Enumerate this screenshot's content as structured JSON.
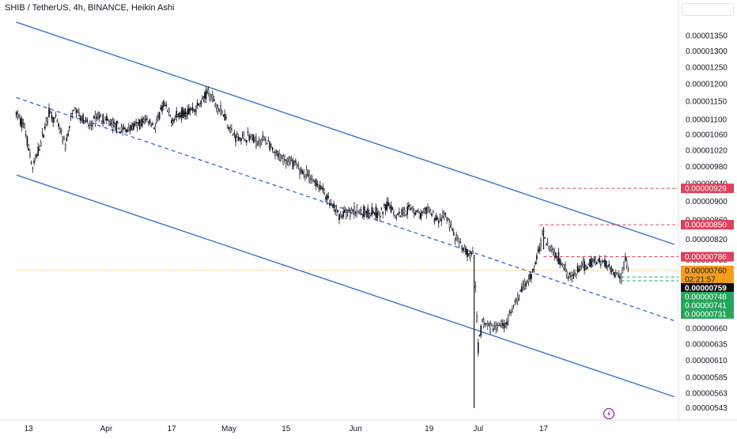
{
  "header": {
    "title": "SHIB / TetherUS, 4h, BINANCE, Heikin Ashi"
  },
  "colors": {
    "channel": "#3a6fd8",
    "up": "#131722",
    "down": "#131722",
    "resistance": "#e0405a",
    "support": "#26a65b",
    "current": "#f59f1a",
    "last": "#0d0d0d",
    "grid": "#f0f3fa",
    "axis_text": "#131722"
  },
  "chart_data": {
    "type": "candlestick",
    "symbol": "SHIB / TetherUS",
    "interval": "4h",
    "exchange": "BINANCE",
    "style": "Heikin Ashi",
    "ylim": [
      5.35e-06,
      1.4e-05
    ],
    "y_scale": "log",
    "y_ticks": [
      "0.00001350",
      "0.00001300",
      "0.00001250",
      "0.00001200",
      "0.00001150",
      "0.00001100",
      "0.00001060",
      "0.00001020",
      "0.00000980",
      "0.00000940",
      "0.00000900",
      "0.00000860",
      "0.00000820",
      "0.00000780",
      "0.00000660",
      "0.00000635",
      "0.00000610",
      "0.00000585",
      "0.00000563",
      "0.00000543"
    ],
    "x_ticks": [
      "13",
      "Apr",
      "17",
      "May",
      "15",
      "Jun",
      "19",
      "Jul",
      "17"
    ],
    "path": [
      {
        "date": "2021-03-10",
        "price": 1.115e-05
      },
      {
        "date": "2021-03-12",
        "price": 1.08e-05
      },
      {
        "date": "2021-03-14",
        "price": 9.75e-06
      },
      {
        "date": "2021-03-16",
        "price": 1.04e-05
      },
      {
        "date": "2021-03-18",
        "price": 1.12e-05
      },
      {
        "date": "2021-03-20",
        "price": 1.09e-05
      },
      {
        "date": "2021-03-22",
        "price": 1.03e-05
      },
      {
        "date": "2021-03-24",
        "price": 1.13e-05
      },
      {
        "date": "2021-03-26",
        "price": 1.105e-05
      },
      {
        "date": "2021-03-28",
        "price": 1.08e-05
      },
      {
        "date": "2021-03-30",
        "price": 1.11e-05
      },
      {
        "date": "2021-04-02",
        "price": 1.09e-05
      },
      {
        "date": "2021-04-05",
        "price": 1.07e-05
      },
      {
        "date": "2021-04-08",
        "price": 1.08e-05
      },
      {
        "date": "2021-04-11",
        "price": 1.1e-05
      },
      {
        "date": "2021-04-13",
        "price": 1.08e-05
      },
      {
        "date": "2021-04-15",
        "price": 1.14e-05
      },
      {
        "date": "2021-04-17",
        "price": 1.1e-05
      },
      {
        "date": "2021-04-20",
        "price": 1.12e-05
      },
      {
        "date": "2021-04-23",
        "price": 1.13e-05
      },
      {
        "date": "2021-04-26",
        "price": 1.175e-05
      },
      {
        "date": "2021-04-28",
        "price": 1.14e-05
      },
      {
        "date": "2021-04-30",
        "price": 1.11e-05
      },
      {
        "date": "2021-05-02",
        "price": 1.06e-05
      },
      {
        "date": "2021-05-04",
        "price": 1.05e-05
      },
      {
        "date": "2021-05-06",
        "price": 1.055e-05
      },
      {
        "date": "2021-05-08",
        "price": 1.04e-05
      },
      {
        "date": "2021-05-10",
        "price": 1.05e-05
      },
      {
        "date": "2021-05-12",
        "price": 1.01e-05
      },
      {
        "date": "2021-05-14",
        "price": 1e-05
      },
      {
        "date": "2021-05-16",
        "price": 9.95e-06
      },
      {
        "date": "2021-05-18",
        "price": 9.75e-06
      },
      {
        "date": "2021-05-20",
        "price": 9.6e-06
      },
      {
        "date": "2021-05-22",
        "price": 9.45e-06
      },
      {
        "date": "2021-05-24",
        "price": 9.25e-06
      },
      {
        "date": "2021-05-26",
        "price": 8.9e-06
      },
      {
        "date": "2021-05-28",
        "price": 8.7e-06
      },
      {
        "date": "2021-05-30",
        "price": 8.75e-06
      },
      {
        "date": "2021-06-01",
        "price": 8.8e-06
      },
      {
        "date": "2021-06-03",
        "price": 8.75e-06
      },
      {
        "date": "2021-06-05",
        "price": 8.8e-06
      },
      {
        "date": "2021-06-07",
        "price": 8.7e-06
      },
      {
        "date": "2021-06-09",
        "price": 8.95e-06
      },
      {
        "date": "2021-06-11",
        "price": 8.7e-06
      },
      {
        "date": "2021-06-13",
        "price": 8.8e-06
      },
      {
        "date": "2021-06-15",
        "price": 8.85e-06
      },
      {
        "date": "2021-06-17",
        "price": 8.7e-06
      },
      {
        "date": "2021-06-19",
        "price": 8.8e-06
      },
      {
        "date": "2021-06-21",
        "price": 8.6e-06
      },
      {
        "date": "2021-06-23",
        "price": 8.7e-06
      },
      {
        "date": "2021-06-25",
        "price": 8.3e-06
      },
      {
        "date": "2021-06-27",
        "price": 8e-06
      },
      {
        "date": "2021-06-29",
        "price": 7.9e-06
      },
      {
        "date": "2021-06-30",
        "price": 7.85e-06
      },
      {
        "date": "2021-07-01",
        "price": 6.3e-06
      },
      {
        "date": "2021-07-02",
        "price": 6.7e-06
      },
      {
        "date": "2021-07-04",
        "price": 6.6e-06
      },
      {
        "date": "2021-07-06",
        "price": 6.65e-06
      },
      {
        "date": "2021-07-08",
        "price": 6.7e-06
      },
      {
        "date": "2021-07-10",
        "price": 7e-06
      },
      {
        "date": "2021-07-12",
        "price": 7.3e-06
      },
      {
        "date": "2021-07-14",
        "price": 7.5e-06
      },
      {
        "date": "2021-07-16",
        "price": 8e-06
      },
      {
        "date": "2021-07-17",
        "price": 8.4e-06
      },
      {
        "date": "2021-07-18",
        "price": 8.1e-06
      },
      {
        "date": "2021-07-20",
        "price": 7.9e-06
      },
      {
        "date": "2021-07-22",
        "price": 7.7e-06
      },
      {
        "date": "2021-07-24",
        "price": 7.45e-06
      },
      {
        "date": "2021-07-26",
        "price": 7.65e-06
      },
      {
        "date": "2021-07-28",
        "price": 7.7e-06
      },
      {
        "date": "2021-07-30",
        "price": 7.8e-06
      },
      {
        "date": "2021-08-01",
        "price": 7.75e-06
      },
      {
        "date": "2021-08-03",
        "price": 7.6e-06
      },
      {
        "date": "2021-08-05",
        "price": 7.45e-06
      },
      {
        "date": "2021-08-06",
        "price": 7.85e-06
      },
      {
        "date": "2021-08-07",
        "price": 7.6e-06
      }
    ],
    "spikes": [
      {
        "date": "2021-06-30",
        "low": 5.43e-06,
        "high": 7.9e-06
      },
      {
        "date": "2021-07-17",
        "low": 8e-06,
        "high": 8.45e-06
      }
    ],
    "channel": {
      "upper": [
        {
          "date": "2021-03-10",
          "price": 1.395e-05
        },
        {
          "date": "2021-08-18",
          "price": 8.1e-06
        }
      ],
      "middle": [
        {
          "date": "2021-03-10",
          "price": 1.16e-05
        },
        {
          "date": "2021-08-18",
          "price": 6.72e-06
        }
      ],
      "lower": [
        {
          "date": "2021-03-10",
          "price": 9.6e-06
        },
        {
          "date": "2021-08-18",
          "price": 5.58e-06
        }
      ]
    },
    "levels": [
      {
        "price": 9.29e-06,
        "label": "0.00000929",
        "kind": "resistance",
        "start_date": "2021-07-16"
      },
      {
        "price": 8.5e-06,
        "label": "0.00000850",
        "kind": "resistance",
        "start_date": "2021-07-16"
      },
      {
        "price": 7.86e-06,
        "label": "0.00000786",
        "kind": "resistance",
        "start_date": "2021-07-17"
      },
      {
        "price": 7.6e-06,
        "label": "0.00000760",
        "kind": "current",
        "start_date": "2021-03-10"
      },
      {
        "price": 7.48e-06,
        "label": "0.00000748",
        "kind": "support",
        "start_date": "2021-08-05"
      },
      {
        "price": 7.41e-06,
        "label": "0.00000741",
        "kind": "support",
        "start_date": "2021-08-05"
      }
    ],
    "price_labels": [
      {
        "price": 9.29e-06,
        "text": "0.00000929",
        "kind": "resistance"
      },
      {
        "price": 8.5e-06,
        "text": "0.00000850",
        "kind": "resistance"
      },
      {
        "price": 7.86e-06,
        "text": "0.00000786",
        "kind": "resistance"
      },
      {
        "price": 7.6e-06,
        "text": "0.00000760",
        "kind": "current"
      },
      {
        "text": "02:21:57",
        "kind": "countdown"
      },
      {
        "price": 7.59e-06,
        "text": "0.00000759",
        "kind": "last"
      },
      {
        "price": 7.48e-06,
        "text": "0.00000748",
        "kind": "support"
      },
      {
        "price": 7.41e-06,
        "text": "0.00000741",
        "kind": "support"
      },
      {
        "price": 7.31e-06,
        "text": "0.00000731",
        "kind": "support"
      }
    ],
    "grid": false
  }
}
